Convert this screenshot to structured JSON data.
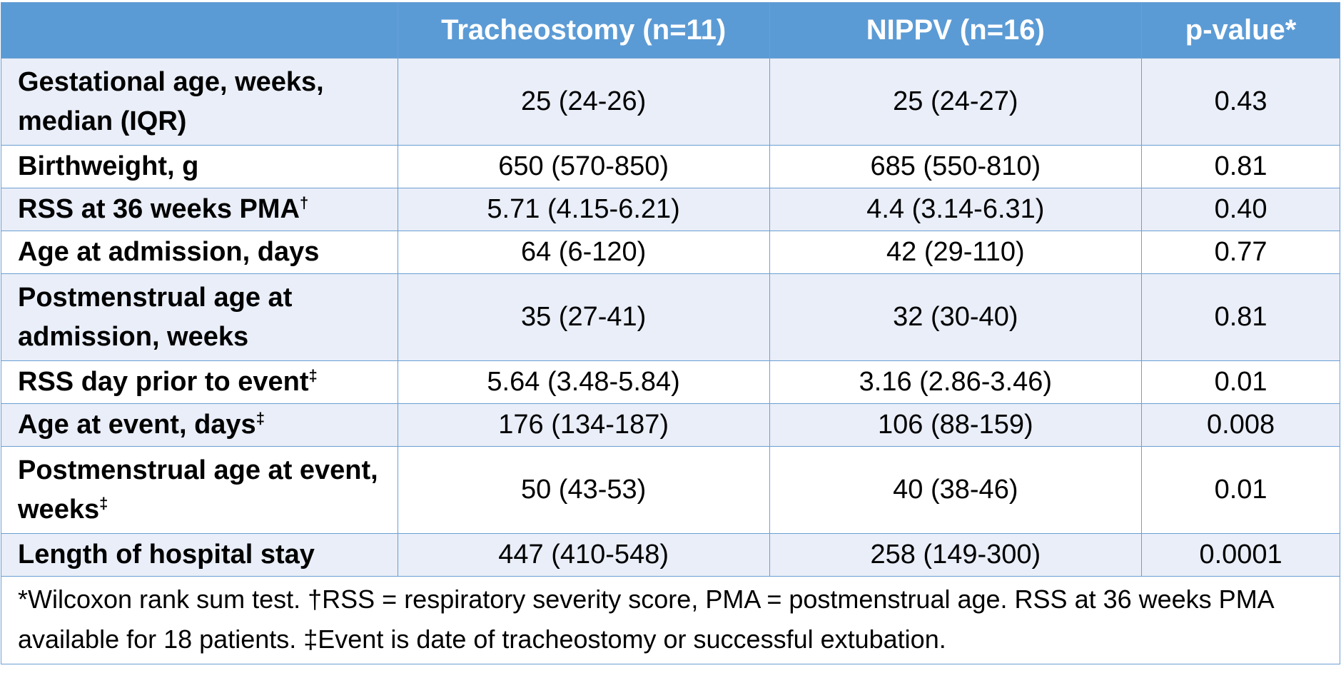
{
  "table": {
    "headers": [
      "",
      "Tracheostomy (n=11)",
      "NIPPV (n=16)",
      "p-value*"
    ],
    "rows": [
      {
        "label": "Gestational age, weeks, median (IQR)",
        "mark": "",
        "tracheostomy": "25 (24-26)",
        "nippv": "25 (24-27)",
        "p": "0.43"
      },
      {
        "label": "Birthweight, g",
        "mark": "",
        "tracheostomy": "650 (570-850)",
        "nippv": "685 (550-810)",
        "p": "0.81"
      },
      {
        "label": "RSS at 36 weeks PMA",
        "mark": "†",
        "tracheostomy": "5.71 (4.15-6.21)",
        "nippv": "4.4 (3.14-6.31)",
        "p": "0.40"
      },
      {
        "label": "Age at admission, days",
        "mark": "",
        "tracheostomy": "64 (6-120)",
        "nippv": "42 (29-110)",
        "p": "0.77"
      },
      {
        "label": "Postmenstrual age at admission, weeks",
        "mark": "",
        "tracheostomy": "35 (27-41)",
        "nippv": "32 (30-40)",
        "p": "0.81"
      },
      {
        "label": "RSS day prior to event",
        "mark": "‡",
        "tracheostomy": "5.64 (3.48-5.84)",
        "nippv": "3.16 (2.86-3.46)",
        "p": "0.01"
      },
      {
        "label": "Age at event, days",
        "mark": "‡",
        "tracheostomy": "176 (134-187)",
        "nippv": "106 (88-159)",
        "p": "0.008"
      },
      {
        "label": "Postmenstrual age at event, weeks",
        "mark": "‡",
        "tracheostomy": "50 (43-53)",
        "nippv": "40 (38-46)",
        "p": "0.01"
      },
      {
        "label": "Length of hospital stay",
        "mark": "",
        "tracheostomy": "447 (410-548)",
        "nippv": "258 (149-300)",
        "p": "0.0001"
      }
    ],
    "footnote": "*Wilcoxon rank sum test. †RSS = respiratory severity score, PMA = postmenstrual age. RSS at 36 weeks PMA available for 18 patients. ‡Event is date of tracheostomy or successful extubation."
  }
}
